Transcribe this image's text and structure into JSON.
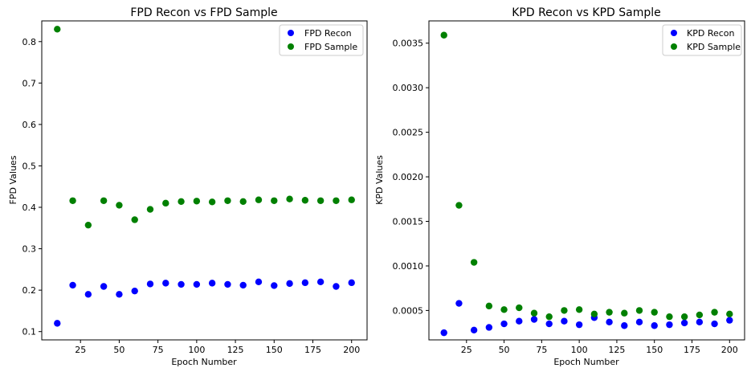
{
  "colors": {
    "recon": "#0000ff",
    "sample": "#008000",
    "axis": "#000000",
    "legend_border": "#cccccc"
  },
  "chart_data": [
    {
      "type": "scatter",
      "title": "FPD Recon vs FPD Sample",
      "xlabel": "Epoch Number",
      "ylabel": "FPD Values",
      "xlim": [
        0,
        210
      ],
      "ylim": [
        0.08,
        0.85
      ],
      "xticks": [
        25,
        50,
        75,
        100,
        125,
        150,
        175,
        200
      ],
      "xtick_labels": [
        "25",
        "50",
        "75",
        "100",
        "125",
        "150",
        "175",
        "200"
      ],
      "yticks": [
        0.1,
        0.2,
        0.3,
        0.4,
        0.5,
        0.6,
        0.7,
        0.8
      ],
      "ytick_labels": [
        "0.1",
        "0.2",
        "0.3",
        "0.4",
        "0.5",
        "0.6",
        "0.7",
        "0.8"
      ],
      "grid": false,
      "legend_position": "top-right",
      "x": [
        10,
        20,
        30,
        40,
        50,
        60,
        70,
        80,
        90,
        100,
        110,
        120,
        130,
        140,
        150,
        160,
        170,
        180,
        190,
        200
      ],
      "series": [
        {
          "name": "FPD Recon",
          "color": "#0000ff",
          "values": [
            0.12,
            0.212,
            0.19,
            0.209,
            0.19,
            0.198,
            0.215,
            0.217,
            0.214,
            0.214,
            0.217,
            0.214,
            0.212,
            0.22,
            0.211,
            0.216,
            0.218,
            0.22,
            0.209,
            0.218
          ]
        },
        {
          "name": "FPD Sample",
          "color": "#008000",
          "values": [
            0.83,
            0.416,
            0.357,
            0.416,
            0.405,
            0.37,
            0.395,
            0.41,
            0.414,
            0.415,
            0.413,
            0.416,
            0.414,
            0.418,
            0.416,
            0.42,
            0.417,
            0.416,
            0.416,
            0.418
          ]
        }
      ]
    },
    {
      "type": "scatter",
      "title": "KPD Recon vs KPD Sample",
      "xlabel": "Epoch Number",
      "ylabel": "KPD Values",
      "xlim": [
        0,
        210
      ],
      "ylim": [
        0.00017,
        0.00375
      ],
      "xticks": [
        25,
        50,
        75,
        100,
        125,
        150,
        175,
        200
      ],
      "xtick_labels": [
        "25",
        "50",
        "75",
        "100",
        "125",
        "150",
        "175",
        "200"
      ],
      "yticks": [
        0.0005,
        0.001,
        0.0015,
        0.002,
        0.0025,
        0.003,
        0.0035
      ],
      "ytick_labels": [
        "0.0005",
        "0.0010",
        "0.0015",
        "0.0020",
        "0.0025",
        "0.0030",
        "0.0035"
      ],
      "grid": false,
      "legend_position": "top-right",
      "x": [
        10,
        20,
        30,
        40,
        50,
        60,
        70,
        80,
        90,
        100,
        110,
        120,
        130,
        140,
        150,
        160,
        170,
        180,
        190,
        200
      ],
      "series": [
        {
          "name": "KPD Recon",
          "color": "#0000ff",
          "values": [
            0.00025,
            0.00058,
            0.00028,
            0.00031,
            0.00035,
            0.00038,
            0.0004,
            0.00035,
            0.00038,
            0.00034,
            0.00042,
            0.00037,
            0.00033,
            0.00037,
            0.00033,
            0.00034,
            0.00036,
            0.00037,
            0.00035,
            0.00039
          ]
        },
        {
          "name": "KPD Sample",
          "color": "#008000",
          "values": [
            0.00359,
            0.00168,
            0.00104,
            0.00055,
            0.00051,
            0.00053,
            0.00047,
            0.00043,
            0.0005,
            0.00051,
            0.00046,
            0.00048,
            0.00047,
            0.0005,
            0.00048,
            0.00043,
            0.00043,
            0.00045,
            0.00048,
            0.00046
          ]
        }
      ]
    }
  ]
}
